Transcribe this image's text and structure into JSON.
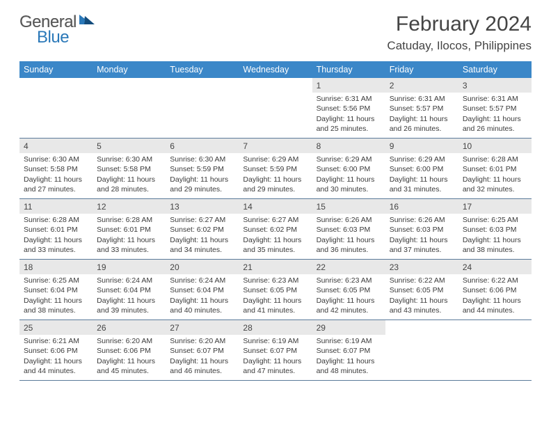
{
  "logo": {
    "general": "General",
    "blue": "Blue"
  },
  "title": "February 2024",
  "location": "Catuday, Ilocos, Philippines",
  "colors": {
    "header_bg": "#3b87c8",
    "header_text": "#ffffff",
    "daynum_bg": "#e8e8e8",
    "week_border": "#5a7a9a",
    "text": "#3a3a3a",
    "logo_blue": "#2a78b8",
    "logo_gray": "#5a5a5a",
    "background": "#ffffff"
  },
  "dayNames": [
    "Sunday",
    "Monday",
    "Tuesday",
    "Wednesday",
    "Thursday",
    "Friday",
    "Saturday"
  ],
  "weeks": [
    [
      null,
      null,
      null,
      null,
      {
        "n": "1",
        "sr": "Sunrise: 6:31 AM",
        "ss": "Sunset: 5:56 PM",
        "dl": "Daylight: 11 hours and 25 minutes."
      },
      {
        "n": "2",
        "sr": "Sunrise: 6:31 AM",
        "ss": "Sunset: 5:57 PM",
        "dl": "Daylight: 11 hours and 26 minutes."
      },
      {
        "n": "3",
        "sr": "Sunrise: 6:31 AM",
        "ss": "Sunset: 5:57 PM",
        "dl": "Daylight: 11 hours and 26 minutes."
      }
    ],
    [
      {
        "n": "4",
        "sr": "Sunrise: 6:30 AM",
        "ss": "Sunset: 5:58 PM",
        "dl": "Daylight: 11 hours and 27 minutes."
      },
      {
        "n": "5",
        "sr": "Sunrise: 6:30 AM",
        "ss": "Sunset: 5:58 PM",
        "dl": "Daylight: 11 hours and 28 minutes."
      },
      {
        "n": "6",
        "sr": "Sunrise: 6:30 AM",
        "ss": "Sunset: 5:59 PM",
        "dl": "Daylight: 11 hours and 29 minutes."
      },
      {
        "n": "7",
        "sr": "Sunrise: 6:29 AM",
        "ss": "Sunset: 5:59 PM",
        "dl": "Daylight: 11 hours and 29 minutes."
      },
      {
        "n": "8",
        "sr": "Sunrise: 6:29 AM",
        "ss": "Sunset: 6:00 PM",
        "dl": "Daylight: 11 hours and 30 minutes."
      },
      {
        "n": "9",
        "sr": "Sunrise: 6:29 AM",
        "ss": "Sunset: 6:00 PM",
        "dl": "Daylight: 11 hours and 31 minutes."
      },
      {
        "n": "10",
        "sr": "Sunrise: 6:28 AM",
        "ss": "Sunset: 6:01 PM",
        "dl": "Daylight: 11 hours and 32 minutes."
      }
    ],
    [
      {
        "n": "11",
        "sr": "Sunrise: 6:28 AM",
        "ss": "Sunset: 6:01 PM",
        "dl": "Daylight: 11 hours and 33 minutes."
      },
      {
        "n": "12",
        "sr": "Sunrise: 6:28 AM",
        "ss": "Sunset: 6:01 PM",
        "dl": "Daylight: 11 hours and 33 minutes."
      },
      {
        "n": "13",
        "sr": "Sunrise: 6:27 AM",
        "ss": "Sunset: 6:02 PM",
        "dl": "Daylight: 11 hours and 34 minutes."
      },
      {
        "n": "14",
        "sr": "Sunrise: 6:27 AM",
        "ss": "Sunset: 6:02 PM",
        "dl": "Daylight: 11 hours and 35 minutes."
      },
      {
        "n": "15",
        "sr": "Sunrise: 6:26 AM",
        "ss": "Sunset: 6:03 PM",
        "dl": "Daylight: 11 hours and 36 minutes."
      },
      {
        "n": "16",
        "sr": "Sunrise: 6:26 AM",
        "ss": "Sunset: 6:03 PM",
        "dl": "Daylight: 11 hours and 37 minutes."
      },
      {
        "n": "17",
        "sr": "Sunrise: 6:25 AM",
        "ss": "Sunset: 6:03 PM",
        "dl": "Daylight: 11 hours and 38 minutes."
      }
    ],
    [
      {
        "n": "18",
        "sr": "Sunrise: 6:25 AM",
        "ss": "Sunset: 6:04 PM",
        "dl": "Daylight: 11 hours and 38 minutes."
      },
      {
        "n": "19",
        "sr": "Sunrise: 6:24 AM",
        "ss": "Sunset: 6:04 PM",
        "dl": "Daylight: 11 hours and 39 minutes."
      },
      {
        "n": "20",
        "sr": "Sunrise: 6:24 AM",
        "ss": "Sunset: 6:04 PM",
        "dl": "Daylight: 11 hours and 40 minutes."
      },
      {
        "n": "21",
        "sr": "Sunrise: 6:23 AM",
        "ss": "Sunset: 6:05 PM",
        "dl": "Daylight: 11 hours and 41 minutes."
      },
      {
        "n": "22",
        "sr": "Sunrise: 6:23 AM",
        "ss": "Sunset: 6:05 PM",
        "dl": "Daylight: 11 hours and 42 minutes."
      },
      {
        "n": "23",
        "sr": "Sunrise: 6:22 AM",
        "ss": "Sunset: 6:05 PM",
        "dl": "Daylight: 11 hours and 43 minutes."
      },
      {
        "n": "24",
        "sr": "Sunrise: 6:22 AM",
        "ss": "Sunset: 6:06 PM",
        "dl": "Daylight: 11 hours and 44 minutes."
      }
    ],
    [
      {
        "n": "25",
        "sr": "Sunrise: 6:21 AM",
        "ss": "Sunset: 6:06 PM",
        "dl": "Daylight: 11 hours and 44 minutes."
      },
      {
        "n": "26",
        "sr": "Sunrise: 6:20 AM",
        "ss": "Sunset: 6:06 PM",
        "dl": "Daylight: 11 hours and 45 minutes."
      },
      {
        "n": "27",
        "sr": "Sunrise: 6:20 AM",
        "ss": "Sunset: 6:07 PM",
        "dl": "Daylight: 11 hours and 46 minutes."
      },
      {
        "n": "28",
        "sr": "Sunrise: 6:19 AM",
        "ss": "Sunset: 6:07 PM",
        "dl": "Daylight: 11 hours and 47 minutes."
      },
      {
        "n": "29",
        "sr": "Sunrise: 6:19 AM",
        "ss": "Sunset: 6:07 PM",
        "dl": "Daylight: 11 hours and 48 minutes."
      },
      null,
      null
    ]
  ]
}
